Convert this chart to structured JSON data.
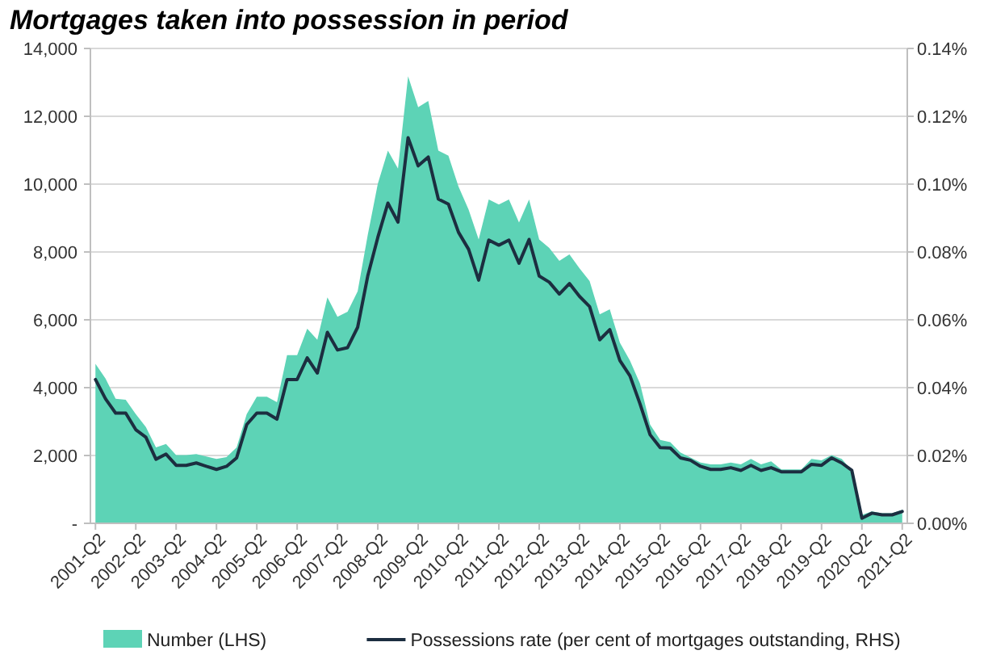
{
  "chart_data": {
    "type": "area",
    "title": "Mortgages taken into possession in period",
    "categories": [
      "2001-Q2",
      null,
      null,
      null,
      "2002-Q2",
      null,
      null,
      null,
      "2003-Q2",
      null,
      null,
      null,
      "2004-Q2",
      null,
      null,
      null,
      "2005-Q2",
      null,
      null,
      null,
      "2006-Q2",
      null,
      null,
      null,
      "2007-Q2",
      null,
      null,
      null,
      "2008-Q2",
      null,
      null,
      null,
      "2009-Q2",
      null,
      null,
      null,
      "2010-Q2",
      null,
      null,
      null,
      "2011-Q2",
      null,
      null,
      null,
      "2012-Q2",
      null,
      null,
      null,
      "2013-Q2",
      null,
      null,
      null,
      "2014-Q2",
      null,
      null,
      null,
      "2015-Q2",
      null,
      null,
      null,
      "2016-Q2",
      null,
      null,
      null,
      "2017-Q2",
      null,
      null,
      null,
      "2018-Q2",
      null,
      null,
      null,
      "2019-Q2",
      null,
      null,
      null,
      "2020-Q2",
      null,
      null,
      null,
      "2021-Q2"
    ],
    "series": [
      {
        "name": "Number (LHS)",
        "type": "area",
        "axis": "y",
        "color": "#5dd3b6",
        "values": [
          4700,
          4270,
          3670,
          3640,
          3220,
          2840,
          2240,
          2340,
          2010,
          2010,
          2040,
          1970,
          1900,
          1950,
          2240,
          3220,
          3730,
          3730,
          3570,
          4960,
          4960,
          5740,
          5410,
          6660,
          6090,
          6240,
          6840,
          8500,
          10010,
          10990,
          10460,
          13180,
          12270,
          12450,
          10990,
          10840,
          9930,
          9250,
          8370,
          9550,
          9400,
          9550,
          8870,
          9550,
          8370,
          8120,
          7740,
          7930,
          7520,
          7140,
          6160,
          6310,
          5330,
          4800,
          4120,
          2910,
          2460,
          2390,
          2090,
          1940,
          1790,
          1740,
          1740,
          1790,
          1740,
          1900,
          1740,
          1830,
          1590,
          1590,
          1590,
          1900,
          1860,
          2010,
          1900,
          1560,
          250,
          350,
          300,
          300,
          400
        ]
      },
      {
        "name": "Possessions rate (per cent of mortgages outstanding, RHS)",
        "type": "line",
        "axis": "y2",
        "color": "#1c2e40",
        "values": [
          0.0424,
          0.0367,
          0.0325,
          0.0325,
          0.0276,
          0.0254,
          0.0189,
          0.0204,
          0.0171,
          0.0171,
          0.0178,
          0.0168,
          0.0159,
          0.0168,
          0.0193,
          0.0291,
          0.0325,
          0.0325,
          0.0307,
          0.0424,
          0.0424,
          0.0488,
          0.0443,
          0.0563,
          0.0511,
          0.0518,
          0.0578,
          0.0729,
          0.0843,
          0.0944,
          0.0888,
          0.1137,
          0.1054,
          0.108,
          0.0956,
          0.0941,
          0.0858,
          0.0808,
          0.0717,
          0.0835,
          0.082,
          0.0835,
          0.0767,
          0.0837,
          0.0729,
          0.0711,
          0.0676,
          0.0707,
          0.0669,
          0.0639,
          0.0541,
          0.0571,
          0.048,
          0.0435,
          0.0352,
          0.0261,
          0.0223,
          0.0222,
          0.0193,
          0.0186,
          0.0168,
          0.0159,
          0.0159,
          0.0164,
          0.0156,
          0.0171,
          0.0156,
          0.0164,
          0.0152,
          0.0152,
          0.0152,
          0.0174,
          0.0171,
          0.0193,
          0.0178,
          0.0156,
          0.0015,
          0.003,
          0.0025,
          0.0025,
          0.0035
        ]
      }
    ],
    "ylim": [
      0,
      14000
    ],
    "yticks": [
      {
        "value": 0,
        "label": "-"
      },
      {
        "value": 2000,
        "label": "2,000"
      },
      {
        "value": 4000,
        "label": "4,000"
      },
      {
        "value": 6000,
        "label": "6,000"
      },
      {
        "value": 8000,
        "label": "8,000"
      },
      {
        "value": 10000,
        "label": "10,000"
      },
      {
        "value": 12000,
        "label": "12,000"
      },
      {
        "value": 14000,
        "label": "14,000"
      }
    ],
    "y2lim": [
      0,
      0.14
    ],
    "y2ticks": [
      {
        "value": 0,
        "label": "0.00%"
      },
      {
        "value": 0.02,
        "label": "0.02%"
      },
      {
        "value": 0.04,
        "label": "0.04%"
      },
      {
        "value": 0.06,
        "label": "0.06%"
      },
      {
        "value": 0.08,
        "label": "0.08%"
      },
      {
        "value": 0.1,
        "label": "0.10%"
      },
      {
        "value": 0.12,
        "label": "0.12%"
      },
      {
        "value": 0.14,
        "label": "0.14%"
      }
    ],
    "grid": "y",
    "legend": "bottom"
  }
}
